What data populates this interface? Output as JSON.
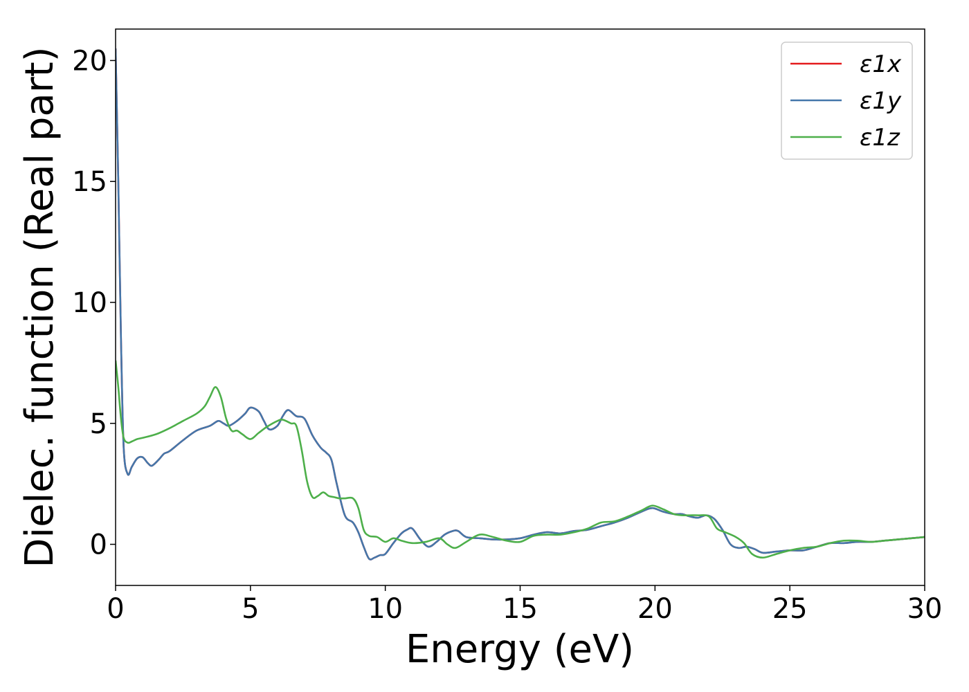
{
  "chart_data": {
    "type": "line",
    "title": "",
    "xlabel": "Energy (eV)",
    "ylabel": "Dielec. function (Real part)",
    "xlim": [
      0,
      30
    ],
    "ylim": [
      -1.7,
      21.3
    ],
    "xticks": [
      0,
      5,
      10,
      15,
      20,
      25,
      30
    ],
    "yticks": [
      0,
      5,
      10,
      15,
      20
    ],
    "grid": false,
    "legend_position": "top-right",
    "series": [
      {
        "name": "ε1x",
        "color": "#e41a1c",
        "x": [
          0,
          0.1,
          0.2,
          0.3,
          0.45,
          0.6,
          0.8,
          1.0,
          1.2,
          1.35,
          1.6,
          1.8,
          2.0,
          2.5,
          3.0,
          3.5,
          3.8,
          4.0,
          4.2,
          4.5,
          4.8,
          5.0,
          5.3,
          5.5,
          5.7,
          6.0,
          6.2,
          6.4,
          6.7,
          7.0,
          7.3,
          7.6,
          7.8,
          8.0,
          8.2,
          8.5,
          8.8,
          9.0,
          9.2,
          9.4,
          9.6,
          9.8,
          10.0,
          10.3,
          10.6,
          10.8,
          11.0,
          11.3,
          11.6,
          11.9,
          12.2,
          12.5,
          12.7,
          13.0,
          13.5,
          14.0,
          14.5,
          15.0,
          15.5,
          16.0,
          16.5,
          17.0,
          17.5,
          18.0,
          18.5,
          19.0,
          19.5,
          19.9,
          20.3,
          20.7,
          21.0,
          21.3,
          21.6,
          21.9,
          22.2,
          22.5,
          22.8,
          23.1,
          23.4,
          23.7,
          24.0,
          24.5,
          25.0,
          25.5,
          26.0,
          26.5,
          27.0,
          27.5,
          28.0,
          28.5,
          29.0,
          29.5,
          30.0
        ],
        "values": [
          20.5,
          15.0,
          8.5,
          4.0,
          2.9,
          3.2,
          3.55,
          3.6,
          3.35,
          3.25,
          3.5,
          3.75,
          3.85,
          4.3,
          4.7,
          4.9,
          5.1,
          5.0,
          4.9,
          5.1,
          5.4,
          5.65,
          5.5,
          5.1,
          4.75,
          4.9,
          5.3,
          5.55,
          5.3,
          5.2,
          4.5,
          4.0,
          3.8,
          3.5,
          2.5,
          1.2,
          0.9,
          0.5,
          -0.1,
          -0.6,
          -0.55,
          -0.45,
          -0.4,
          0.05,
          0.45,
          0.6,
          0.65,
          0.2,
          -0.1,
          0.1,
          0.4,
          0.55,
          0.55,
          0.3,
          0.25,
          0.2,
          0.2,
          0.25,
          0.4,
          0.5,
          0.45,
          0.55,
          0.6,
          0.75,
          0.9,
          1.1,
          1.35,
          1.5,
          1.35,
          1.25,
          1.25,
          1.15,
          1.1,
          1.2,
          1.05,
          0.6,
          0.0,
          -0.15,
          -0.1,
          -0.2,
          -0.35,
          -0.3,
          -0.25,
          -0.25,
          -0.1,
          0.05,
          0.05,
          0.1,
          0.1,
          0.15,
          0.2,
          0.25,
          0.3
        ]
      },
      {
        "name": "ε1y",
        "color": "#4477aa",
        "x": [
          0,
          0.1,
          0.2,
          0.3,
          0.45,
          0.6,
          0.8,
          1.0,
          1.2,
          1.35,
          1.6,
          1.8,
          2.0,
          2.5,
          3.0,
          3.5,
          3.8,
          4.0,
          4.2,
          4.5,
          4.8,
          5.0,
          5.3,
          5.5,
          5.7,
          6.0,
          6.2,
          6.4,
          6.7,
          7.0,
          7.3,
          7.6,
          7.8,
          8.0,
          8.2,
          8.5,
          8.8,
          9.0,
          9.2,
          9.4,
          9.6,
          9.8,
          10.0,
          10.3,
          10.6,
          10.8,
          11.0,
          11.3,
          11.6,
          11.9,
          12.2,
          12.5,
          12.7,
          13.0,
          13.5,
          14.0,
          14.5,
          15.0,
          15.5,
          16.0,
          16.5,
          17.0,
          17.5,
          18.0,
          18.5,
          19.0,
          19.5,
          19.9,
          20.3,
          20.7,
          21.0,
          21.3,
          21.6,
          21.9,
          22.2,
          22.5,
          22.8,
          23.1,
          23.4,
          23.7,
          24.0,
          24.5,
          25.0,
          25.5,
          26.0,
          26.5,
          27.0,
          27.5,
          28.0,
          28.5,
          29.0,
          29.5,
          30.0
        ],
        "values": [
          20.5,
          15.0,
          8.5,
          4.0,
          2.9,
          3.2,
          3.55,
          3.6,
          3.35,
          3.25,
          3.5,
          3.75,
          3.85,
          4.3,
          4.7,
          4.9,
          5.1,
          5.0,
          4.9,
          5.1,
          5.4,
          5.65,
          5.5,
          5.1,
          4.75,
          4.9,
          5.3,
          5.55,
          5.3,
          5.2,
          4.5,
          4.0,
          3.8,
          3.5,
          2.5,
          1.2,
          0.9,
          0.5,
          -0.1,
          -0.6,
          -0.55,
          -0.45,
          -0.4,
          0.05,
          0.45,
          0.6,
          0.65,
          0.2,
          -0.1,
          0.1,
          0.4,
          0.55,
          0.55,
          0.3,
          0.25,
          0.2,
          0.2,
          0.25,
          0.4,
          0.5,
          0.45,
          0.55,
          0.6,
          0.75,
          0.9,
          1.1,
          1.35,
          1.5,
          1.35,
          1.25,
          1.25,
          1.15,
          1.1,
          1.2,
          1.05,
          0.6,
          0.0,
          -0.15,
          -0.1,
          -0.2,
          -0.35,
          -0.3,
          -0.25,
          -0.25,
          -0.1,
          0.05,
          0.05,
          0.1,
          0.1,
          0.15,
          0.2,
          0.25,
          0.3
        ]
      },
      {
        "name": "ε1z",
        "color": "#4daf4a",
        "x": [
          0,
          0.1,
          0.2,
          0.3,
          0.45,
          0.6,
          0.8,
          1.0,
          1.5,
          2.0,
          2.5,
          3.0,
          3.3,
          3.5,
          3.7,
          3.9,
          4.1,
          4.3,
          4.5,
          4.7,
          5.0,
          5.3,
          5.6,
          6.0,
          6.2,
          6.5,
          6.7,
          6.9,
          7.1,
          7.3,
          7.5,
          7.7,
          7.9,
          8.1,
          8.3,
          8.5,
          8.8,
          9.0,
          9.2,
          9.4,
          9.7,
          10.0,
          10.3,
          10.6,
          11.0,
          11.5,
          12.0,
          12.3,
          12.6,
          13.0,
          13.5,
          14.0,
          14.5,
          15.0,
          15.5,
          16.0,
          16.5,
          17.0,
          17.5,
          18.0,
          18.5,
          19.0,
          19.5,
          19.9,
          20.3,
          20.7,
          21.0,
          21.3,
          21.6,
          22.0,
          22.3,
          22.6,
          23.0,
          23.3,
          23.6,
          24.0,
          24.5,
          25.0,
          25.5,
          26.0,
          26.5,
          27.0,
          27.5,
          28.0,
          28.5,
          29.0,
          29.5,
          30.0
        ],
        "values": [
          7.6,
          6.5,
          5.2,
          4.4,
          4.2,
          4.25,
          4.35,
          4.4,
          4.55,
          4.8,
          5.1,
          5.4,
          5.7,
          6.1,
          6.5,
          6.1,
          5.2,
          4.7,
          4.7,
          4.55,
          4.35,
          4.6,
          4.85,
          5.1,
          5.15,
          5.0,
          4.9,
          3.9,
          2.6,
          1.95,
          2.0,
          2.15,
          2.0,
          1.95,
          1.9,
          1.9,
          1.9,
          1.5,
          0.6,
          0.35,
          0.3,
          0.1,
          0.25,
          0.15,
          0.05,
          0.1,
          0.25,
          0.0,
          -0.15,
          0.1,
          0.4,
          0.3,
          0.15,
          0.1,
          0.35,
          0.4,
          0.4,
          0.5,
          0.65,
          0.9,
          0.95,
          1.15,
          1.4,
          1.6,
          1.45,
          1.25,
          1.2,
          1.2,
          1.2,
          1.15,
          0.65,
          0.5,
          0.3,
          0.05,
          -0.4,
          -0.55,
          -0.4,
          -0.25,
          -0.15,
          -0.1,
          0.05,
          0.15,
          0.15,
          0.1,
          0.15,
          0.2,
          0.25,
          0.3
        ]
      }
    ]
  }
}
